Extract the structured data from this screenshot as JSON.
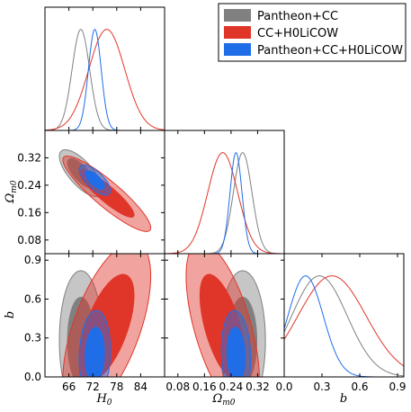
{
  "chart_data": {
    "type": "corner",
    "colors": {
      "Pantheon+CC": "#808080",
      "CC+H0LiCOW": "#e0362a",
      "Pantheon+CC+H0LiCOW": "#1f6ee8"
    },
    "parameters": [
      {
        "id": "H0",
        "label_base": "H",
        "label_sub": "0",
        "range": [
          60,
          90
        ],
        "ticks": [
          66,
          72,
          78,
          84
        ]
      },
      {
        "id": "Om0",
        "label_base": "Ω",
        "label_sub": "m0",
        "range": [
          0.04,
          0.4
        ],
        "ticks": [
          0.08,
          0.16,
          0.24,
          0.32
        ]
      },
      {
        "id": "b",
        "label_base": "b",
        "label_sub": "",
        "range": [
          0.0,
          0.95
        ],
        "ticks": [
          0.0,
          0.3,
          0.6,
          0.9
        ]
      }
    ],
    "tick_labels": {
      "H0": [
        "66",
        "72",
        "78",
        "84"
      ],
      "Om0": [
        "0.08",
        "0.16",
        "0.24",
        "0.32"
      ],
      "b": [
        "0.0",
        "0.3",
        "0.6",
        "0.9"
      ]
    },
    "series": [
      {
        "name": "Pantheon+CC",
        "color": "#808080",
        "mean": {
          "H0": 69.0,
          "Om0": 0.275,
          "b": 0.28
        },
        "sigma": {
          "H0": 2.2,
          "Om0": 0.028,
          "b": 0.22
        },
        "corr": {
          "H0_Om0": -0.72,
          "H0_b": 0.0,
          "Om0_b": 0.0
        }
      },
      {
        "name": "CC+H0LiCOW",
        "color": "#e0362a",
        "mean": {
          "H0": 75.5,
          "Om0": 0.215,
          "b": 0.38
        },
        "sigma": {
          "H0": 4.5,
          "Om0": 0.045,
          "b": 0.27
        },
        "corr": {
          "H0_Om0": -0.9,
          "H0_b": 0.6,
          "Om0_b": -0.6
        }
      },
      {
        "name": "Pantheon+CC+H0LiCOW",
        "color": "#1f6ee8",
        "mean": {
          "H0": 72.5,
          "Om0": 0.255,
          "b": 0.17
        },
        "sigma": {
          "H0": 1.6,
          "Om0": 0.018,
          "b": 0.14
        },
        "corr": {
          "H0_Om0": -0.7,
          "H0_b": 0.1,
          "Om0_b": -0.1
        }
      }
    ],
    "grid": false,
    "legend_position": "top-right"
  }
}
